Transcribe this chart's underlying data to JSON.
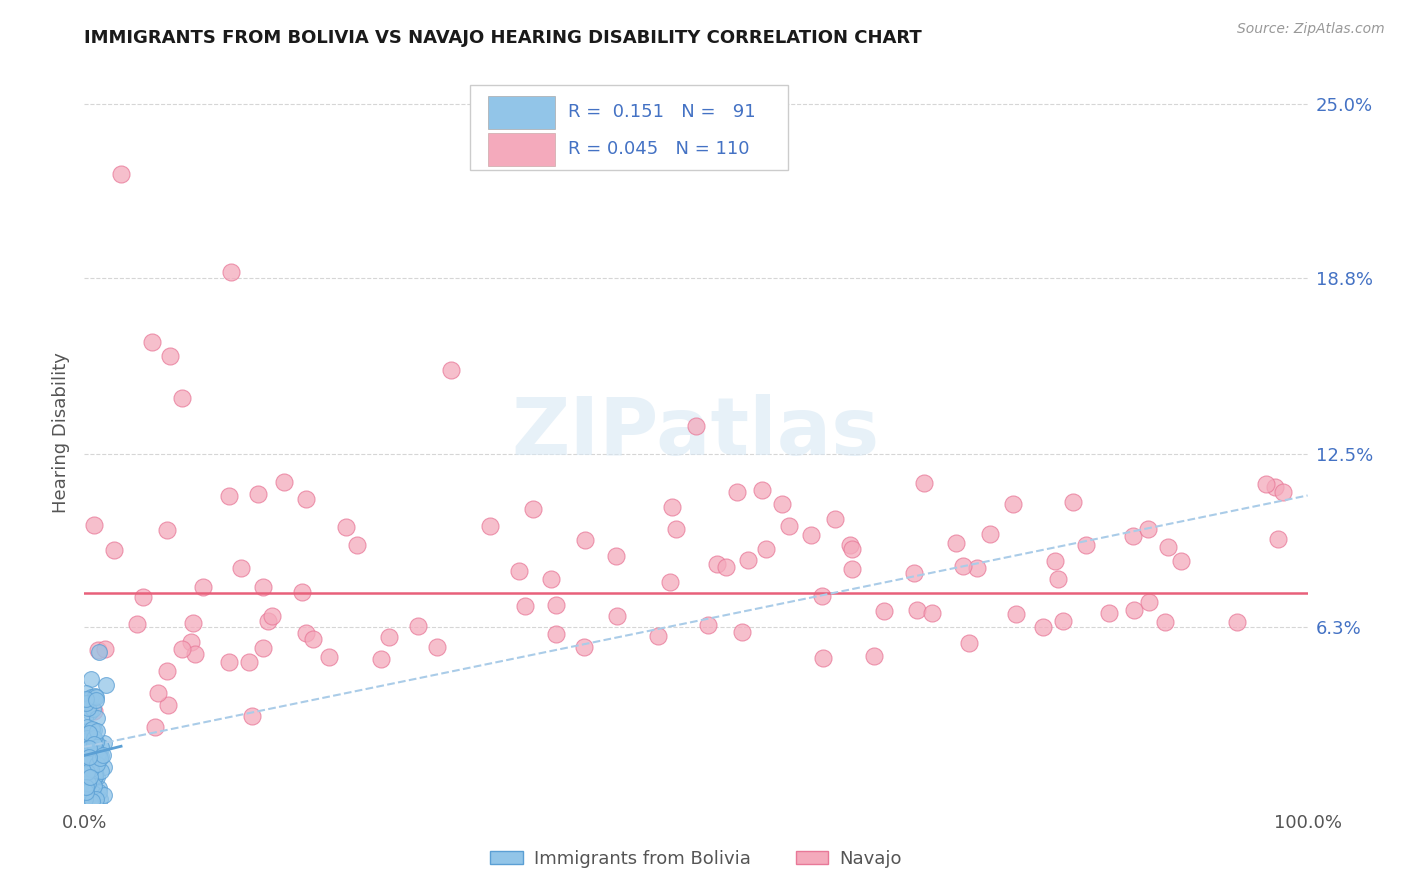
{
  "title": "IMMIGRANTS FROM BOLIVIA VS NAVAJO HEARING DISABILITY CORRELATION CHART",
  "source_text": "Source: ZipAtlas.com",
  "ylabel": "Hearing Disability",
  "xlim": [
    0.0,
    100.0
  ],
  "ylim": [
    0.0,
    26.5
  ],
  "yticks": [
    6.3,
    12.5,
    18.8,
    25.0
  ],
  "ytick_labels": [
    "6.3%",
    "12.5%",
    "18.8%",
    "25.0%"
  ],
  "blue_color": "#92C5E8",
  "pink_color": "#F4AABC",
  "blue_edge_color": "#5B9FD4",
  "pink_edge_color": "#E87898",
  "trend_blue_dashed_color": "#AACCE8",
  "trend_pink_solid_color": "#E8607A",
  "axis_tick_color": "#4472C4",
  "title_color": "#1A1A1A",
  "watermark": "ZIPatlas",
  "background_color": "#FFFFFF",
  "grid_color": "#CCCCCC",
  "legend_box_color": "#F0F0F0",
  "legend_border_color": "#CCCCCC"
}
